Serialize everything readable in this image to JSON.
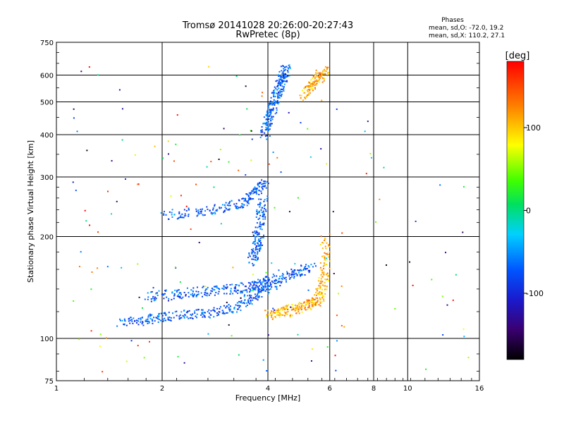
{
  "title_line1": "Tromsø 20141028 20:26:00-20:27:43",
  "title_line2": "RwPretec (8p)",
  "stats": {
    "heading": "Phases",
    "line_o": "mean, sd,O: -72.0, 19.2",
    "line_x": "mean, sd,X: 110.2, 27.1"
  },
  "colorbar": {
    "unit": "[deg]",
    "ticks": [
      "100",
      "0",
      "-100"
    ],
    "tick_values": [
      100,
      0,
      -100
    ],
    "range": [
      -180,
      180
    ],
    "colormap": "rainbow (black-purple-blue-cyan-green-yellow-orange-red)"
  },
  "chart_data": {
    "type": "scatter",
    "xlabel": "Frequency [MHz]",
    "ylabel": "Stationary phase Virtual Height [km]",
    "xscale": "log",
    "yscale": "log",
    "xlim": [
      1,
      16
    ],
    "ylim": [
      75,
      750
    ],
    "x_ticks": [
      1,
      2,
      4,
      6,
      8,
      10,
      16
    ],
    "x_tick_labels": [
      "1",
      "2",
      "4",
      "6",
      "8",
      "10",
      "16"
    ],
    "y_ticks": [
      75,
      100,
      200,
      300,
      400,
      500,
      600,
      750
    ],
    "y_tick_labels": [
      "75",
      "100",
      "200",
      "300",
      "400",
      "500",
      "600",
      "750"
    ],
    "grid": true,
    "color_variable": "phase [deg]",
    "traces": [
      {
        "role": "O-mode lower trace",
        "phase_mean": -72,
        "points": [
          [
            1.5,
            112
          ],
          [
            1.8,
            114
          ],
          [
            2.0,
            116
          ],
          [
            2.4,
            118
          ],
          [
            2.8,
            120
          ],
          [
            3.2,
            124
          ],
          [
            3.6,
            132
          ],
          [
            3.9,
            140
          ],
          [
            4.3,
            150
          ],
          [
            4.8,
            158
          ],
          [
            5.3,
            162
          ]
        ]
      },
      {
        "role": "O-mode upper lower-layer trace",
        "phase_mean": -72,
        "points": [
          [
            1.8,
            133
          ],
          [
            2.2,
            136
          ],
          [
            2.6,
            138
          ],
          [
            3.0,
            140
          ],
          [
            3.5,
            142
          ],
          [
            3.8,
            145
          ],
          [
            4.0,
            150
          ]
        ]
      },
      {
        "role": "O-mode cusp",
        "phase_mean": -72,
        "points": [
          [
            3.6,
            170
          ],
          [
            3.7,
            185
          ],
          [
            3.75,
            200
          ],
          [
            3.8,
            230
          ],
          [
            3.85,
            260
          ]
        ]
      },
      {
        "role": "O-mode F-layer trace",
        "phase_mean": -72,
        "points": [
          [
            2.0,
            232
          ],
          [
            2.5,
            238
          ],
          [
            3.0,
            245
          ],
          [
            3.4,
            255
          ],
          [
            3.7,
            275
          ],
          [
            3.9,
            290
          ]
        ]
      },
      {
        "role": "O-mode F-layer critical",
        "phase_mean": -72,
        "points": [
          [
            3.9,
            400
          ],
          [
            4.0,
            440
          ],
          [
            4.1,
            480
          ],
          [
            4.2,
            520
          ],
          [
            4.3,
            560
          ],
          [
            4.4,
            600
          ],
          [
            4.5,
            630
          ]
        ]
      },
      {
        "role": "X-mode lower trace",
        "phase_mean": 110,
        "points": [
          [
            4.0,
            118
          ],
          [
            4.4,
            120
          ],
          [
            4.8,
            123
          ],
          [
            5.2,
            126
          ],
          [
            5.5,
            130
          ],
          [
            5.7,
            140
          ],
          [
            5.8,
            160
          ],
          [
            5.8,
            200
          ]
        ]
      },
      {
        "role": "X-mode F-layer trace",
        "phase_mean": 110,
        "points": [
          [
            5.0,
            520
          ],
          [
            5.3,
            560
          ],
          [
            5.6,
            600
          ],
          [
            5.8,
            620
          ]
        ]
      }
    ]
  }
}
